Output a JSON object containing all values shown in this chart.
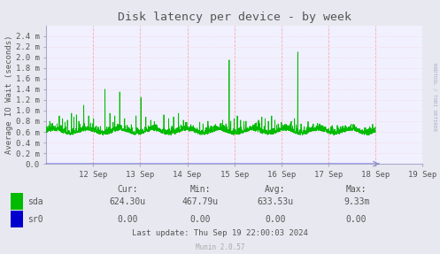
{
  "title": "Disk latency per device - by week",
  "ylabel": "Average IO Wait (seconds)",
  "background_color": "#e8e8f0",
  "plot_bg_color": "#f0f0ff",
  "grid_h_color": "#ffcccc",
  "grid_v_color": "#ffbbbb",
  "line_color_sda": "#00bb00",
  "line_color_sr0": "#0000cc",
  "ylim_max": 0.0026,
  "ytick_vals": [
    0.0,
    0.0002,
    0.0004,
    0.0006,
    0.0008,
    0.001,
    0.0012,
    0.0014,
    0.0016,
    0.0018,
    0.002,
    0.0022,
    0.0024
  ],
  "ytick_labels": [
    "0.0",
    "0.2 m",
    "0.4 m",
    "0.6 m",
    "0.8 m",
    "1.0 m",
    "1.2 m",
    "1.4 m",
    "1.6 m",
    "1.8 m",
    "2.0 m",
    "2.2 m",
    "2.4 m"
  ],
  "xtick_labels": [
    "12 Sep",
    "13 Sep",
    "14 Sep",
    "15 Sep",
    "16 Sep",
    "17 Sep",
    "18 Sep",
    "19 Sep"
  ],
  "legend_entries": [
    "sda",
    "sr0"
  ],
  "legend_colors": [
    "#00bb00",
    "#0000cc"
  ],
  "cur_label": "Cur:",
  "cur_sda": "624.30u",
  "cur_sr0": "0.00",
  "min_label": "Min:",
  "min_sda": "467.79u",
  "min_sr0": "0.00",
  "avg_label": "Avg:",
  "avg_sda": "633.53u",
  "avg_sr0": "0.00",
  "max_label": "Max:",
  "max_sda": "9.33m",
  "max_sr0": "0.00",
  "last_update": "Last update: Thu Sep 19 22:00:03 2024",
  "munin_version": "Munin 2.0.57",
  "rrdtool_text": "RRDTOOL / TOBI OETIKER",
  "title_color": "#555555",
  "text_color": "#555555",
  "spine_color": "#aaaacc",
  "arrow_color": "#8888bb"
}
